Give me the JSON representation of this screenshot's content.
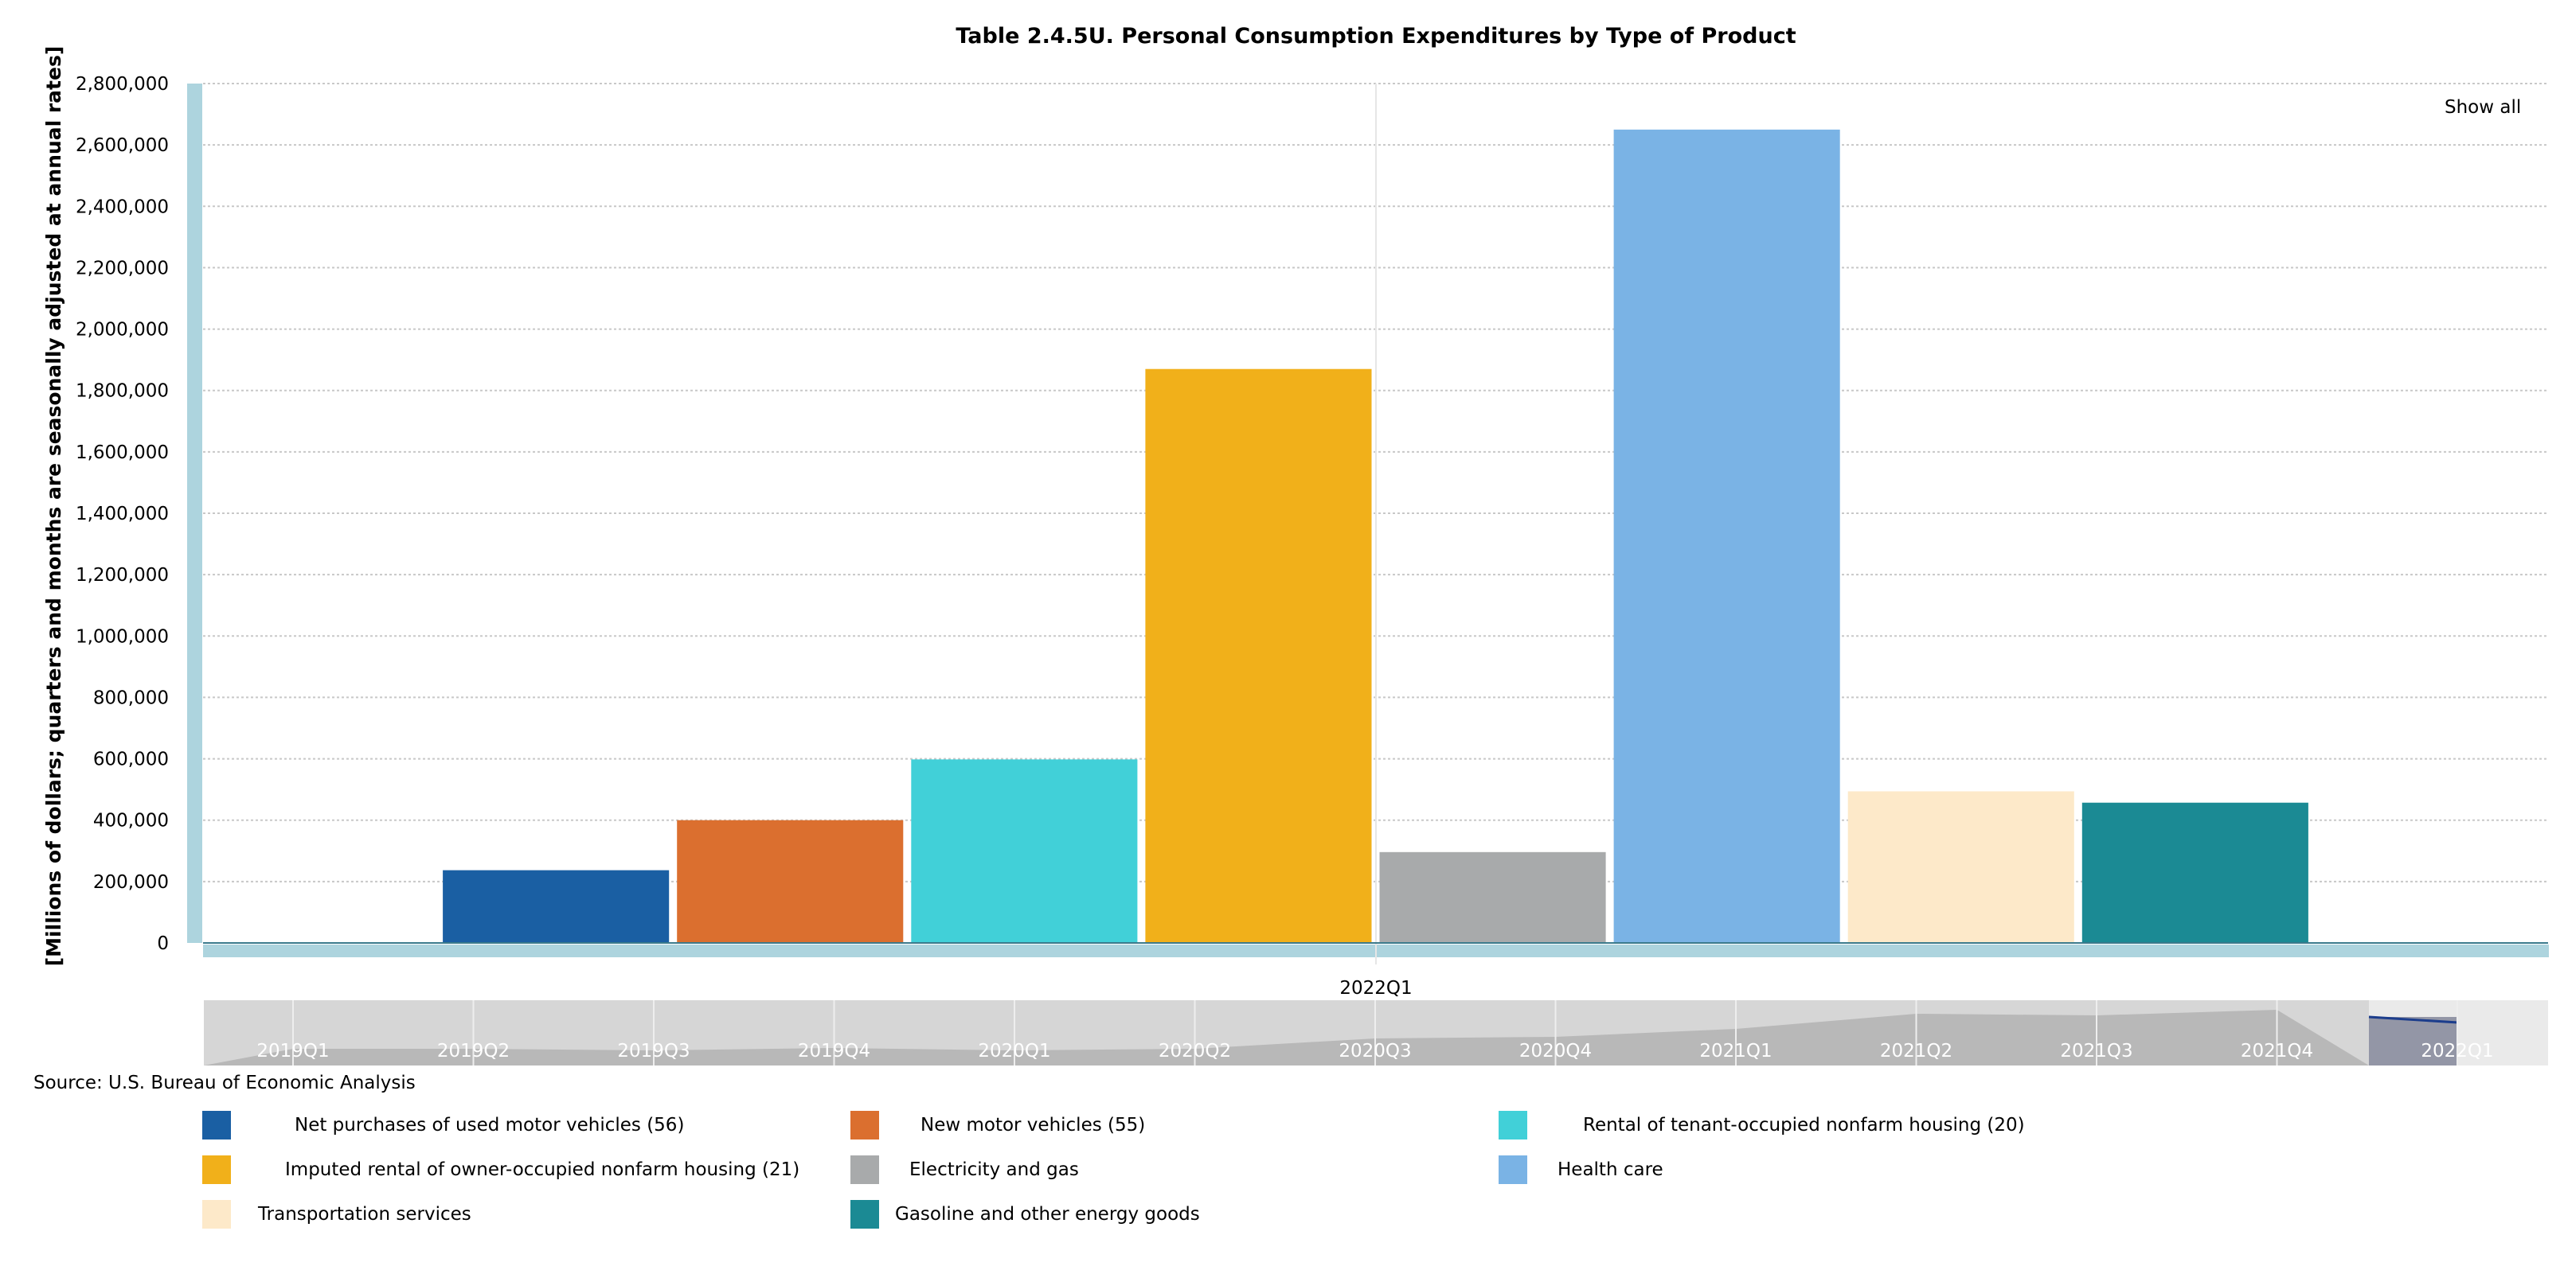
{
  "chart_data": {
    "type": "bar",
    "title": "Table 2.4.5U. Personal Consumption Expenditures by Type of Product",
    "ylabel": "[Millions of dollars; quarters and months are seasonally adjusted at annual rates]",
    "xlabel": "",
    "categories": [
      "2022Q1"
    ],
    "ylim": [
      0,
      2800000
    ],
    "yticks": [
      0,
      200000,
      400000,
      600000,
      800000,
      1000000,
      1200000,
      1400000,
      1600000,
      1800000,
      2000000,
      2200000,
      2400000,
      2600000,
      2800000
    ],
    "ytick_labels": [
      "0",
      "200,000",
      "400,000",
      "600,000",
      "800,000",
      "1,000,000",
      "1,200,000",
      "1,400,000",
      "1,600,000",
      "1,800,000",
      "2,000,000",
      "2,200,000",
      "2,400,000",
      "2,600,000",
      "2,800,000"
    ],
    "grid": true,
    "series": [
      {
        "name": "Net purchases of used motor vehicles (56)",
        "values": [
          237000
        ],
        "color": "#1a5fa3"
      },
      {
        "name": "New motor vehicles (55)",
        "values": [
          400000
        ],
        "color": "#db6f2f"
      },
      {
        "name": "Rental of tenant-occupied nonfarm housing (20)",
        "values": [
          598000
        ],
        "color": "#41d0d8"
      },
      {
        "name": "Imputed rental of owner-occupied nonfarm housing (21)",
        "values": [
          1870000
        ],
        "color": "#f1b01a"
      },
      {
        "name": "Electricity and gas",
        "values": [
          296000
        ],
        "color": "#a8aaab"
      },
      {
        "name": "Health care",
        "values": [
          2650000
        ],
        "color": "#7ab3e5"
      },
      {
        "name": "Transportation services",
        "values": [
          494000
        ],
        "color": "#fde9c9"
      },
      {
        "name": "Gasoline and other energy goods",
        "values": [
          457000
        ],
        "color": "#1b8a94"
      }
    ],
    "navigator": {
      "ticks": [
        "2019Q1",
        "2019Q2",
        "2019Q3",
        "2019Q4",
        "2020Q1",
        "2020Q2",
        "2020Q3",
        "2020Q4",
        "2021Q1",
        "2021Q2",
        "2021Q3",
        "2021Q4",
        "2022Q1"
      ]
    },
    "legend_position": "bottom"
  },
  "source_text": "Source: U.S. Bureau of Economic Analysis",
  "show_all_label": "Show all"
}
